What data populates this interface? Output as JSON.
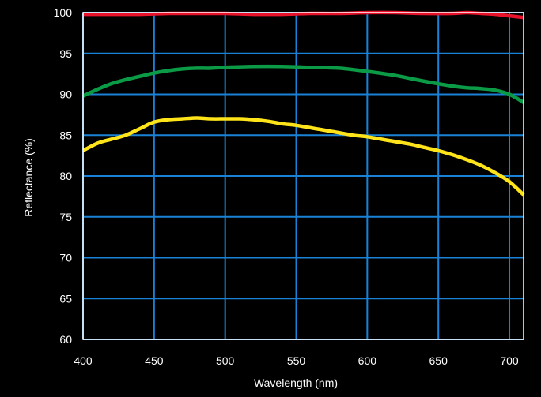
{
  "chart_data": {
    "type": "line",
    "title": "",
    "xlabel": "Wavelength (nm)",
    "ylabel": "Reflectance (%)",
    "xlim": [
      400,
      710
    ],
    "ylim": [
      60,
      100
    ],
    "xticks": [
      400,
      450,
      500,
      550,
      600,
      650,
      700
    ],
    "yticks": [
      60,
      65,
      70,
      75,
      80,
      85,
      90,
      95,
      100
    ],
    "xtick_labels": [
      "400",
      "450",
      "500",
      "550",
      "600",
      "650",
      "700"
    ],
    "ytick_labels": [
      "60",
      "65",
      "70",
      "75",
      "80",
      "85",
      "90",
      "95",
      "100"
    ],
    "grid": true,
    "legend": "none",
    "colors": {
      "background": "#000000",
      "grid": "#1a82d6",
      "axis": "#ffffff",
      "text": "#ffffff"
    },
    "series": [
      {
        "color": "#e8132b",
        "x": [
          400,
          420,
          440,
          460,
          480,
          500,
          520,
          540,
          560,
          580,
          600,
          620,
          640,
          660,
          670,
          680,
          690,
          700,
          710
        ],
        "y": [
          99.8,
          99.8,
          99.8,
          99.9,
          99.9,
          99.9,
          99.8,
          99.8,
          99.9,
          99.9,
          100.0,
          100.0,
          99.9,
          99.9,
          100.0,
          99.9,
          99.8,
          99.6,
          99.4
        ]
      },
      {
        "color": "#0b9a45",
        "x": [
          400,
          410,
          420,
          430,
          440,
          450,
          460,
          470,
          480,
          490,
          500,
          520,
          540,
          560,
          580,
          600,
          620,
          640,
          660,
          670,
          680,
          690,
          700,
          710
        ],
        "y": [
          89.8,
          90.6,
          91.3,
          91.8,
          92.2,
          92.6,
          92.9,
          93.1,
          93.2,
          93.2,
          93.3,
          93.4,
          93.4,
          93.3,
          93.2,
          92.8,
          92.3,
          91.6,
          91.0,
          90.8,
          90.7,
          90.5,
          90.0,
          89.0
        ]
      },
      {
        "color": "#ffe41a",
        "x": [
          400,
          410,
          420,
          430,
          440,
          450,
          460,
          470,
          480,
          490,
          500,
          510,
          520,
          530,
          540,
          550,
          560,
          570,
          580,
          590,
          600,
          610,
          620,
          630,
          640,
          650,
          660,
          670,
          680,
          690,
          700,
          710
        ],
        "y": [
          83.1,
          84.0,
          84.5,
          85.0,
          85.8,
          86.6,
          86.9,
          87.0,
          87.1,
          87.0,
          87.0,
          87.0,
          86.9,
          86.7,
          86.4,
          86.2,
          85.9,
          85.6,
          85.3,
          85.0,
          84.8,
          84.5,
          84.2,
          83.9,
          83.5,
          83.1,
          82.6,
          82.0,
          81.3,
          80.4,
          79.3,
          77.7
        ]
      }
    ]
  }
}
